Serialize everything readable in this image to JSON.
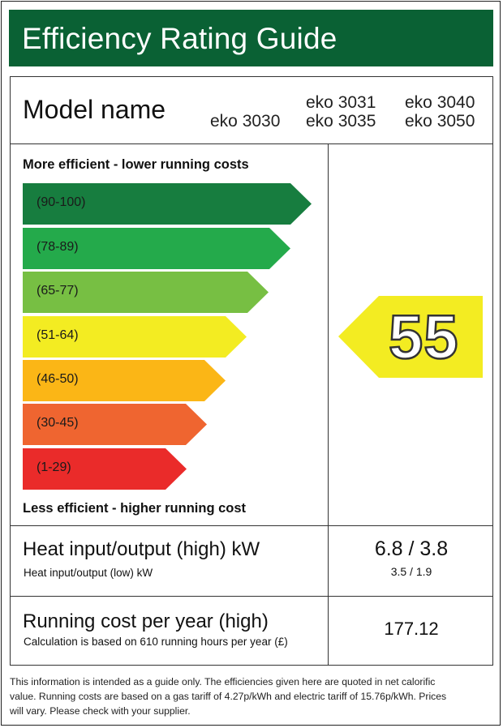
{
  "header": {
    "title": "Efficiency Rating Guide",
    "bg_color": "#0a6134"
  },
  "model": {
    "label": "Model name",
    "names": [
      "eko 3030",
      "eko 3031",
      "eko 3035",
      "eko 3040",
      "eko 3050"
    ]
  },
  "efficiency": {
    "top_caption": "More efficient - lower running costs",
    "bottom_caption": "Less efficient - higher running cost",
    "bands": [
      {
        "label": "(90-100)",
        "color": "#177d3f"
      },
      {
        "label": "(78-89)",
        "color": "#24aa4b"
      },
      {
        "label": "(65-77)",
        "color": "#77bf43"
      },
      {
        "label": "(51-64)",
        "color": "#f3ec22"
      },
      {
        "label": "(46-50)",
        "color": "#fbb616"
      },
      {
        "label": "(30-45)",
        "color": "#ef6530"
      },
      {
        "label": "(1-29)",
        "color": "#ea2b2a"
      }
    ],
    "rating": {
      "value": "55",
      "color": "#f3ec22"
    }
  },
  "specs": {
    "heat": {
      "title": "Heat input/output (high) kW",
      "subtitle": "Heat input/output (low) kW",
      "value_high": "6.8 / 3.8",
      "value_low": "3.5 / 1.9"
    },
    "cost": {
      "title": "Running cost per year (high)",
      "subtitle": "Calculation is based on 610 running hours per year (£)",
      "value": "177.12"
    }
  },
  "footer": {
    "lines": [
      "This information is intended as a guide only. The efficiencies given here are quoted in net calorific",
      "value. Running costs are based on a gas tariff of 4.27p/kWh and electric tariff of 15.76p/kWh. Prices",
      "will vary. Please check with your supplier."
    ]
  }
}
